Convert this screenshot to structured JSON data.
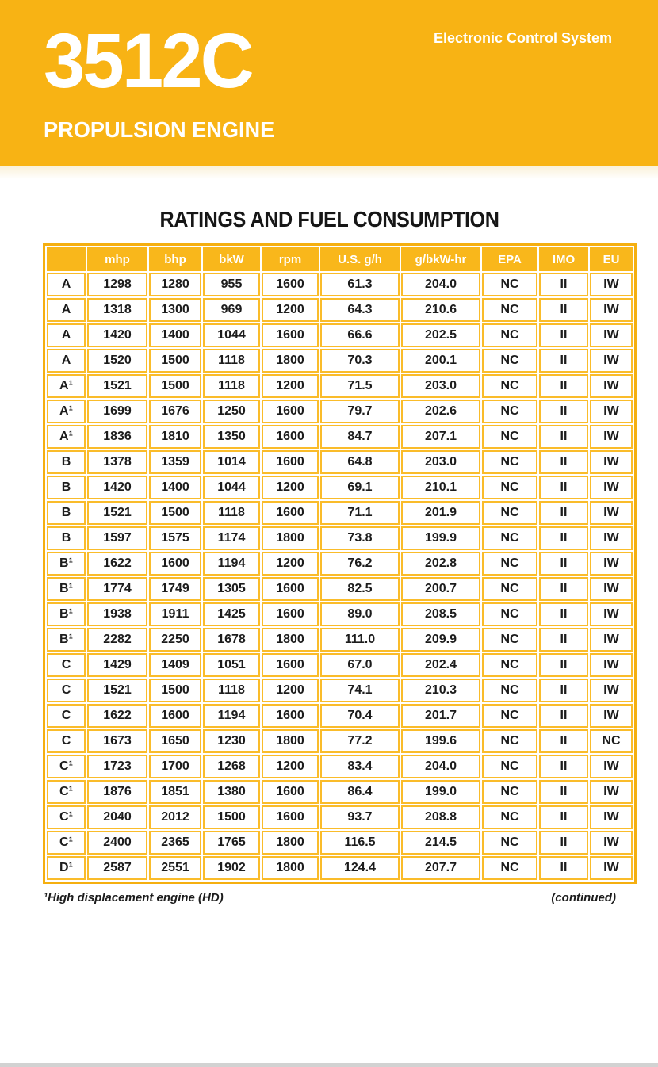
{
  "page": {
    "accent_gold": "#F8B314",
    "table_header_gold": "#F9B71B",
    "table_border_gold": "#FABC2A",
    "bottom_strip_color": "#d2d2d2",
    "header_text_color": "#ffffff",
    "body_text_color": "#1c1c1c"
  },
  "banner": {
    "model": "3512C",
    "subtitle": "PROPULSION ENGINE",
    "tagline": "Electronic Control System"
  },
  "section": {
    "title": "RATINGS AND FUEL CONSUMPTION"
  },
  "table": {
    "columns": [
      "",
      "mhp",
      "bhp",
      "bkW",
      "rpm",
      "U.S. g/h",
      "g/bkW-hr",
      "EPA",
      "IMO",
      "EU"
    ],
    "rows": [
      [
        "A",
        "1298",
        "1280",
        "955",
        "1600",
        "61.3",
        "204.0",
        "NC",
        "II",
        "IW"
      ],
      [
        "A",
        "1318",
        "1300",
        "969",
        "1200",
        "64.3",
        "210.6",
        "NC",
        "II",
        "IW"
      ],
      [
        "A",
        "1420",
        "1400",
        "1044",
        "1600",
        "66.6",
        "202.5",
        "NC",
        "II",
        "IW"
      ],
      [
        "A",
        "1520",
        "1500",
        "1118",
        "1800",
        "70.3",
        "200.1",
        "NC",
        "II",
        "IW"
      ],
      [
        "A¹",
        "1521",
        "1500",
        "1118",
        "1200",
        "71.5",
        "203.0",
        "NC",
        "II",
        "IW"
      ],
      [
        "A¹",
        "1699",
        "1676",
        "1250",
        "1600",
        "79.7",
        "202.6",
        "NC",
        "II",
        "IW"
      ],
      [
        "A¹",
        "1836",
        "1810",
        "1350",
        "1600",
        "84.7",
        "207.1",
        "NC",
        "II",
        "IW"
      ],
      [
        "B",
        "1378",
        "1359",
        "1014",
        "1600",
        "64.8",
        "203.0",
        "NC",
        "II",
        "IW"
      ],
      [
        "B",
        "1420",
        "1400",
        "1044",
        "1200",
        "69.1",
        "210.1",
        "NC",
        "II",
        "IW"
      ],
      [
        "B",
        "1521",
        "1500",
        "1118",
        "1600",
        "71.1",
        "201.9",
        "NC",
        "II",
        "IW"
      ],
      [
        "B",
        "1597",
        "1575",
        "1174",
        "1800",
        "73.8",
        "199.9",
        "NC",
        "II",
        "IW"
      ],
      [
        "B¹",
        "1622",
        "1600",
        "1194",
        "1200",
        "76.2",
        "202.8",
        "NC",
        "II",
        "IW"
      ],
      [
        "B¹",
        "1774",
        "1749",
        "1305",
        "1600",
        "82.5",
        "200.7",
        "NC",
        "II",
        "IW"
      ],
      [
        "B¹",
        "1938",
        "1911",
        "1425",
        "1600",
        "89.0",
        "208.5",
        "NC",
        "II",
        "IW"
      ],
      [
        "B¹",
        "2282",
        "2250",
        "1678",
        "1800",
        "111.0",
        "209.9",
        "NC",
        "II",
        "IW"
      ],
      [
        "C",
        "1429",
        "1409",
        "1051",
        "1600",
        "67.0",
        "202.4",
        "NC",
        "II",
        "IW"
      ],
      [
        "C",
        "1521",
        "1500",
        "1118",
        "1200",
        "74.1",
        "210.3",
        "NC",
        "II",
        "IW"
      ],
      [
        "C",
        "1622",
        "1600",
        "1194",
        "1600",
        "70.4",
        "201.7",
        "NC",
        "II",
        "IW"
      ],
      [
        "C",
        "1673",
        "1650",
        "1230",
        "1800",
        "77.2",
        "199.6",
        "NC",
        "II",
        "NC"
      ],
      [
        "C¹",
        "1723",
        "1700",
        "1268",
        "1200",
        "83.4",
        "204.0",
        "NC",
        "II",
        "IW"
      ],
      [
        "C¹",
        "1876",
        "1851",
        "1380",
        "1600",
        "86.4",
        "199.0",
        "NC",
        "II",
        "IW"
      ],
      [
        "C¹",
        "2040",
        "2012",
        "1500",
        "1600",
        "93.7",
        "208.8",
        "NC",
        "II",
        "IW"
      ],
      [
        "C¹",
        "2400",
        "2365",
        "1765",
        "1800",
        "116.5",
        "214.5",
        "NC",
        "II",
        "IW"
      ],
      [
        "D¹",
        "2587",
        "2551",
        "1902",
        "1800",
        "124.4",
        "207.7",
        "NC",
        "II",
        "IW"
      ]
    ]
  },
  "footnotes": {
    "left": "¹High displacement engine (HD)",
    "right": "(continued)"
  }
}
